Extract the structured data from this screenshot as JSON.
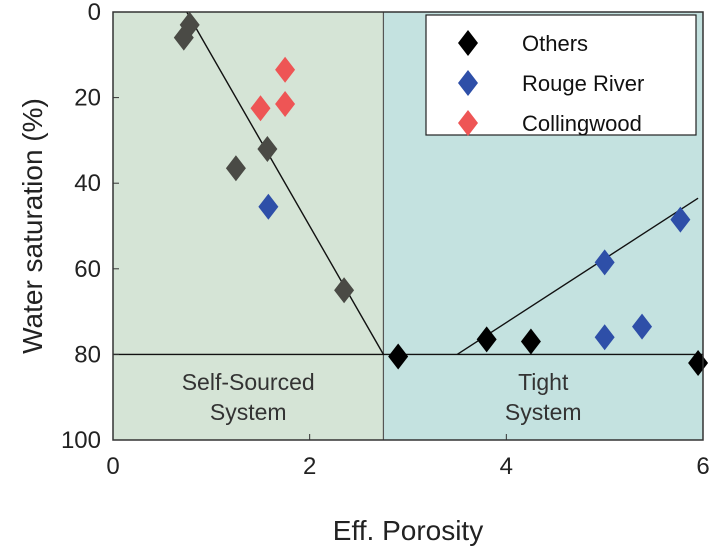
{
  "chart_data": {
    "type": "scatter",
    "xlabel": "Eff. Porosity",
    "ylabel": "Water saturation (%)",
    "xlim": [
      0,
      6
    ],
    "ylim": [
      0,
      100
    ],
    "y_inverted": true,
    "xticks": [
      0,
      2,
      4,
      6
    ],
    "yticks": [
      0,
      20,
      40,
      60,
      80,
      100
    ],
    "grid": false,
    "legend_position": "top-right",
    "regions": [
      {
        "label_lines": [
          "Self-Sourced",
          "System"
        ],
        "x_range": [
          0,
          2.75
        ],
        "color": "#d5e4d6"
      },
      {
        "label_lines": [
          "Tight",
          "System"
        ],
        "x_range": [
          2.75,
          6
        ],
        "color": "#c4e2e0"
      }
    ],
    "series": [
      {
        "name": "Others",
        "color": "#000000",
        "points": [
          [
            2.9,
            80.5
          ],
          [
            3.8,
            76.5
          ],
          [
            4.25,
            77.0
          ],
          [
            5.95,
            82.0
          ]
        ]
      },
      {
        "name": "",
        "color": "#4a4a45",
        "points": [
          [
            0.72,
            6.0
          ],
          [
            0.78,
            3.0
          ],
          [
            1.25,
            36.5
          ],
          [
            1.57,
            32.0
          ],
          [
            2.35,
            65.0
          ]
        ]
      },
      {
        "name": "Rouge River",
        "color": "#2e4fa8",
        "points": [
          [
            1.58,
            45.5
          ],
          [
            5.0,
            58.5
          ],
          [
            5.77,
            48.5
          ],
          [
            5.0,
            76.0
          ],
          [
            5.38,
            73.5
          ]
        ]
      },
      {
        "name": "Collingwood",
        "color": "#ee5555",
        "points": [
          [
            1.5,
            22.5
          ],
          [
            1.75,
            21.5
          ],
          [
            1.75,
            13.5
          ]
        ]
      }
    ],
    "lines": [
      {
        "from": [
          0.75,
          0.0
        ],
        "to": [
          2.75,
          80.0
        ]
      },
      {
        "from": [
          0,
          80.0
        ],
        "to": [
          6,
          80.0
        ]
      },
      {
        "from": [
          3.5,
          80.0
        ],
        "to": [
          5.95,
          43.5
        ]
      }
    ]
  }
}
